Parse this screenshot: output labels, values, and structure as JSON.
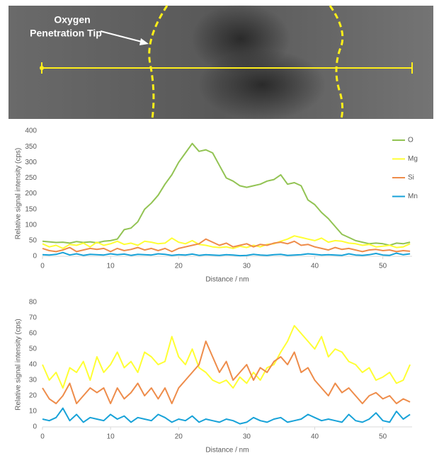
{
  "image": {
    "annotation": [
      "Oxygen",
      "Penetration Tip"
    ]
  },
  "chart_data": [
    {
      "type": "line",
      "x_label": "Distance / nm",
      "y_label": "Relative signal intensity (cps)",
      "x": [
        0,
        1,
        2,
        3,
        4,
        5,
        6,
        7,
        8,
        9,
        10,
        11,
        12,
        13,
        14,
        15,
        16,
        17,
        18,
        19,
        20,
        21,
        22,
        23,
        24,
        25,
        26,
        27,
        28,
        29,
        30,
        31,
        32,
        33,
        34,
        35,
        36,
        37,
        38,
        39,
        40,
        41,
        42,
        43,
        44,
        45,
        46,
        47,
        48,
        49,
        50,
        51,
        52,
        53,
        54
      ],
      "xlim": [
        0,
        54.3
      ],
      "xticks": [
        0,
        10,
        20,
        30,
        40,
        50
      ],
      "ylim": [
        0,
        400
      ],
      "yticks": [
        0,
        50,
        100,
        150,
        200,
        250,
        300,
        350,
        400
      ],
      "grid": false,
      "legend": "right",
      "series": [
        {
          "name": "O",
          "color": "#92c353",
          "values": [
            48,
            46,
            44,
            45,
            42,
            47,
            44,
            46,
            43,
            48,
            50,
            55,
            85,
            90,
            110,
            150,
            170,
            195,
            230,
            260,
            300,
            330,
            360,
            335,
            340,
            330,
            290,
            250,
            240,
            225,
            220,
            225,
            230,
            240,
            245,
            260,
            230,
            235,
            225,
            180,
            165,
            140,
            120,
            95,
            70,
            60,
            50,
            45,
            40,
            42,
            40,
            35,
            42,
            40,
            45
          ]
        },
        {
          "name": "Mg",
          "color": "#ffff33",
          "values": [
            40,
            30,
            35,
            25,
            38,
            35,
            42,
            30,
            45,
            35,
            40,
            48,
            38,
            42,
            35,
            48,
            45,
            40,
            42,
            58,
            45,
            40,
            50,
            38,
            35,
            30,
            28,
            30,
            25,
            32,
            28,
            35,
            30,
            38,
            40,
            48,
            55,
            65,
            60,
            55,
            50,
            58,
            45,
            50,
            48,
            42,
            40,
            35,
            38,
            30,
            32,
            35,
            28,
            30,
            40
          ]
        },
        {
          "name": "Si",
          "color": "#ee8c4a",
          "values": [
            25,
            18,
            15,
            20,
            28,
            15,
            20,
            25,
            22,
            25,
            15,
            25,
            18,
            22,
            28,
            20,
            25,
            18,
            25,
            15,
            25,
            30,
            35,
            40,
            55,
            45,
            35,
            42,
            30,
            35,
            40,
            30,
            38,
            35,
            42,
            45,
            40,
            48,
            35,
            38,
            30,
            25,
            20,
            28,
            22,
            25,
            20,
            15,
            20,
            22,
            18,
            20,
            15,
            18,
            16
          ]
        },
        {
          "name": "Mn",
          "color": "#17a2d8",
          "values": [
            5,
            4,
            6,
            12,
            4,
            8,
            3,
            6,
            5,
            4,
            8,
            5,
            7,
            3,
            6,
            5,
            4,
            8,
            6,
            3,
            5,
            4,
            7,
            3,
            5,
            4,
            3,
            5,
            4,
            2,
            3,
            6,
            4,
            3,
            5,
            6,
            3,
            4,
            5,
            8,
            6,
            4,
            5,
            4,
            3,
            8,
            4,
            3,
            5,
            9,
            4,
            3,
            10,
            5,
            8
          ]
        }
      ]
    },
    {
      "type": "line",
      "x_label": "Distance / nm",
      "y_label": "Relative signal intensity (cps)",
      "x": [
        0,
        1,
        2,
        3,
        4,
        5,
        6,
        7,
        8,
        9,
        10,
        11,
        12,
        13,
        14,
        15,
        16,
        17,
        18,
        19,
        20,
        21,
        22,
        23,
        24,
        25,
        26,
        27,
        28,
        29,
        30,
        31,
        32,
        33,
        34,
        35,
        36,
        37,
        38,
        39,
        40,
        41,
        42,
        43,
        44,
        45,
        46,
        47,
        48,
        49,
        50,
        51,
        52,
        53,
        54
      ],
      "xlim": [
        0,
        54.3
      ],
      "xticks": [
        0,
        10,
        20,
        30,
        40,
        50
      ],
      "ylim": [
        0,
        80
      ],
      "yticks": [
        0,
        10,
        20,
        30,
        40,
        50,
        60,
        70,
        80
      ],
      "grid": false,
      "legend": false,
      "series": [
        {
          "color": "#ffff33",
          "values": [
            40,
            30,
            35,
            25,
            38,
            35,
            42,
            30,
            45,
            35,
            40,
            48,
            38,
            42,
            35,
            48,
            45,
            40,
            42,
            58,
            45,
            40,
            50,
            38,
            35,
            30,
            28,
            30,
            25,
            32,
            28,
            35,
            30,
            38,
            40,
            48,
            55,
            65,
            60,
            55,
            50,
            58,
            45,
            50,
            48,
            42,
            40,
            35,
            38,
            30,
            32,
            35,
            28,
            30,
            40
          ]
        },
        {
          "color": "#ee8c4a",
          "values": [
            25,
            18,
            15,
            20,
            28,
            15,
            20,
            25,
            22,
            25,
            15,
            25,
            18,
            22,
            28,
            20,
            25,
            18,
            25,
            15,
            25,
            30,
            35,
            40,
            55,
            45,
            35,
            42,
            30,
            35,
            40,
            30,
            38,
            35,
            42,
            45,
            40,
            48,
            35,
            38,
            30,
            25,
            20,
            28,
            22,
            25,
            20,
            15,
            20,
            22,
            18,
            20,
            15,
            18,
            16
          ]
        },
        {
          "color": "#17a2d8",
          "values": [
            5,
            4,
            6,
            12,
            4,
            8,
            3,
            6,
            5,
            4,
            8,
            5,
            7,
            3,
            6,
            5,
            4,
            8,
            6,
            3,
            5,
            4,
            7,
            3,
            5,
            4,
            3,
            5,
            4,
            2,
            3,
            6,
            4,
            3,
            5,
            6,
            3,
            4,
            5,
            8,
            6,
            4,
            5,
            4,
            3,
            8,
            4,
            3,
            5,
            9,
            4,
            3,
            10,
            5,
            8
          ]
        }
      ]
    }
  ]
}
